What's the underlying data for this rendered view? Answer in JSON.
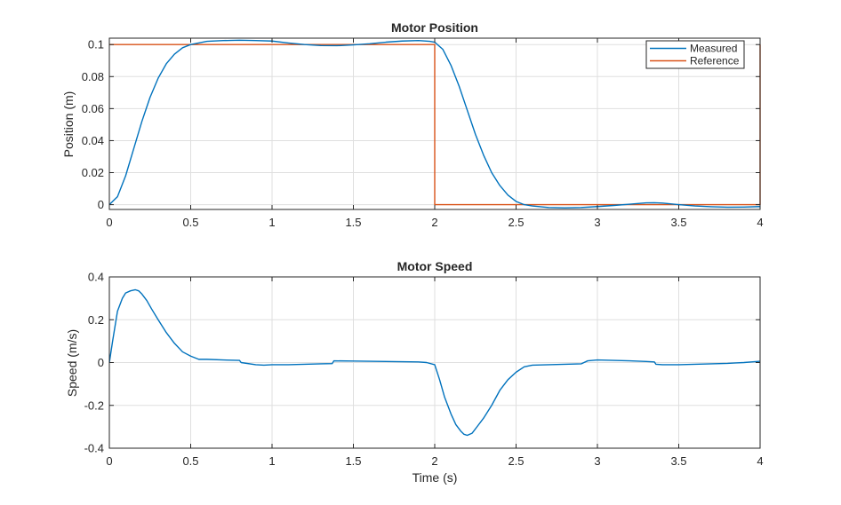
{
  "chart_data": [
    {
      "type": "line",
      "title": "Motor Position",
      "xlabel": "",
      "ylabel": "Position (m)",
      "xlim": [
        0,
        4
      ],
      "ylim": [
        -0.003,
        0.104
      ],
      "xticks": [
        0,
        0.5,
        1,
        1.5,
        2,
        2.5,
        3,
        3.5,
        4
      ],
      "xtick_labels": [
        "0",
        "0.5",
        "1",
        "1.5",
        "2",
        "2.5",
        "3",
        "3.5",
        "4"
      ],
      "yticks": [
        0,
        0.02,
        0.04,
        0.06,
        0.08,
        0.1
      ],
      "ytick_labels": [
        "0",
        "0.02",
        "0.04",
        "0.06",
        "0.08",
        "0.1"
      ],
      "grid": true,
      "legend": "top-right",
      "series": [
        {
          "name": "Measured",
          "color": "#0072BD",
          "x": [
            0,
            0.05,
            0.1,
            0.15,
            0.2,
            0.25,
            0.3,
            0.35,
            0.4,
            0.45,
            0.5,
            0.6,
            0.7,
            0.8,
            0.9,
            1.0,
            1.1,
            1.2,
            1.3,
            1.4,
            1.5,
            1.6,
            1.7,
            1.8,
            1.9,
            1.97,
            2.0,
            2.05,
            2.1,
            2.15,
            2.2,
            2.25,
            2.3,
            2.35,
            2.4,
            2.45,
            2.5,
            2.55,
            2.6,
            2.7,
            2.8,
            2.9,
            3.0,
            3.1,
            3.2,
            3.3,
            3.35,
            3.4,
            3.5,
            3.6,
            3.7,
            3.8,
            3.9,
            4.0
          ],
          "y": [
            0,
            0.005,
            0.018,
            0.035,
            0.052,
            0.067,
            0.079,
            0.088,
            0.094,
            0.098,
            0.1,
            0.102,
            0.1025,
            0.1027,
            0.1025,
            0.1022,
            0.101,
            0.1,
            0.0994,
            0.0993,
            0.0998,
            0.1005,
            0.1015,
            0.1022,
            0.1025,
            0.102,
            0.1015,
            0.097,
            0.087,
            0.074,
            0.059,
            0.044,
            0.031,
            0.02,
            0.012,
            0.006,
            0.002,
            0.0,
            -0.0008,
            -0.0018,
            -0.002,
            -0.0018,
            -0.0012,
            -0.0005,
            0.0003,
            0.0011,
            0.0012,
            0.001,
            0.0,
            -0.0008,
            -0.0013,
            -0.0016,
            -0.0015,
            -0.0012
          ]
        },
        {
          "name": "Reference",
          "color": "#D95319",
          "x": [
            0,
            2,
            2,
            4,
            4
          ],
          "y": [
            0.1,
            0.1,
            0,
            0,
            0.1
          ]
        }
      ]
    },
    {
      "type": "line",
      "title": "Motor Speed",
      "xlabel": "Time (s)",
      "ylabel": "Speed (m/s)",
      "xlim": [
        0,
        4
      ],
      "ylim": [
        -0.4,
        0.4
      ],
      "xticks": [
        0,
        0.5,
        1,
        1.5,
        2,
        2.5,
        3,
        3.5,
        4
      ],
      "xtick_labels": [
        "0",
        "0.5",
        "1",
        "1.5",
        "2",
        "2.5",
        "3",
        "3.5",
        "4"
      ],
      "yticks": [
        -0.4,
        -0.2,
        0,
        0.2,
        0.4
      ],
      "ytick_labels": [
        "-0.4",
        "-0.2",
        "0",
        "0.2",
        "0.4"
      ],
      "grid": true,
      "series": [
        {
          "color": "#0072BD",
          "x": [
            0,
            0.02,
            0.05,
            0.08,
            0.1,
            0.13,
            0.16,
            0.18,
            0.2,
            0.23,
            0.26,
            0.3,
            0.35,
            0.4,
            0.45,
            0.5,
            0.55,
            0.6,
            0.7,
            0.8,
            0.81,
            0.9,
            0.95,
            1.0,
            1.1,
            1.2,
            1.3,
            1.37,
            1.38,
            1.5,
            1.6,
            1.7,
            1.8,
            1.9,
            1.95,
            2.0,
            2.03,
            2.06,
            2.1,
            2.13,
            2.16,
            2.18,
            2.2,
            2.23,
            2.26,
            2.3,
            2.35,
            2.4,
            2.45,
            2.5,
            2.55,
            2.6,
            2.7,
            2.8,
            2.9,
            2.94,
            3.0,
            3.1,
            3.2,
            3.3,
            3.35,
            3.36,
            3.4,
            3.5,
            3.6,
            3.7,
            3.8,
            3.85,
            3.9,
            4.0
          ],
          "y": [
            0.0,
            0.1,
            0.24,
            0.3,
            0.325,
            0.335,
            0.34,
            0.335,
            0.32,
            0.29,
            0.25,
            0.2,
            0.14,
            0.09,
            0.05,
            0.03,
            0.015,
            0.015,
            0.012,
            0.01,
            0.0,
            -0.01,
            -0.012,
            -0.01,
            -0.01,
            -0.008,
            -0.006,
            -0.005,
            0.008,
            0.007,
            0.006,
            0.005,
            0.004,
            0.003,
            0.0,
            -0.01,
            -0.08,
            -0.16,
            -0.24,
            -0.29,
            -0.32,
            -0.335,
            -0.34,
            -0.33,
            -0.3,
            -0.26,
            -0.2,
            -0.13,
            -0.08,
            -0.045,
            -0.02,
            -0.012,
            -0.01,
            -0.008,
            -0.006,
            0.008,
            0.012,
            0.01,
            0.008,
            0.005,
            0.003,
            -0.008,
            -0.01,
            -0.01,
            -0.008,
            -0.006,
            -0.004,
            -0.002,
            0.0,
            0.006
          ]
        }
      ]
    }
  ]
}
